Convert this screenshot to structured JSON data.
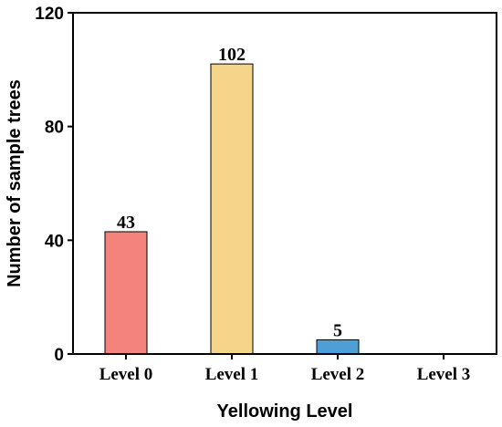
{
  "chart_data": {
    "type": "bar",
    "xlabel": "Yellowing Level",
    "ylabel": "Number of sample trees",
    "categories": [
      "Level 0",
      "Level 1",
      "Level 2",
      "Level 3"
    ],
    "values": [
      43,
      102,
      5,
      0
    ],
    "data_labels": [
      "43",
      "102",
      "5",
      ""
    ],
    "colors": [
      "#f4837b",
      "#f5d58a",
      "#4e9fd6",
      "#ffffff"
    ],
    "ylim": [
      0,
      120
    ],
    "yticks": [
      "0",
      "40",
      "80",
      "120"
    ],
    "grid": false,
    "legend": "none"
  }
}
